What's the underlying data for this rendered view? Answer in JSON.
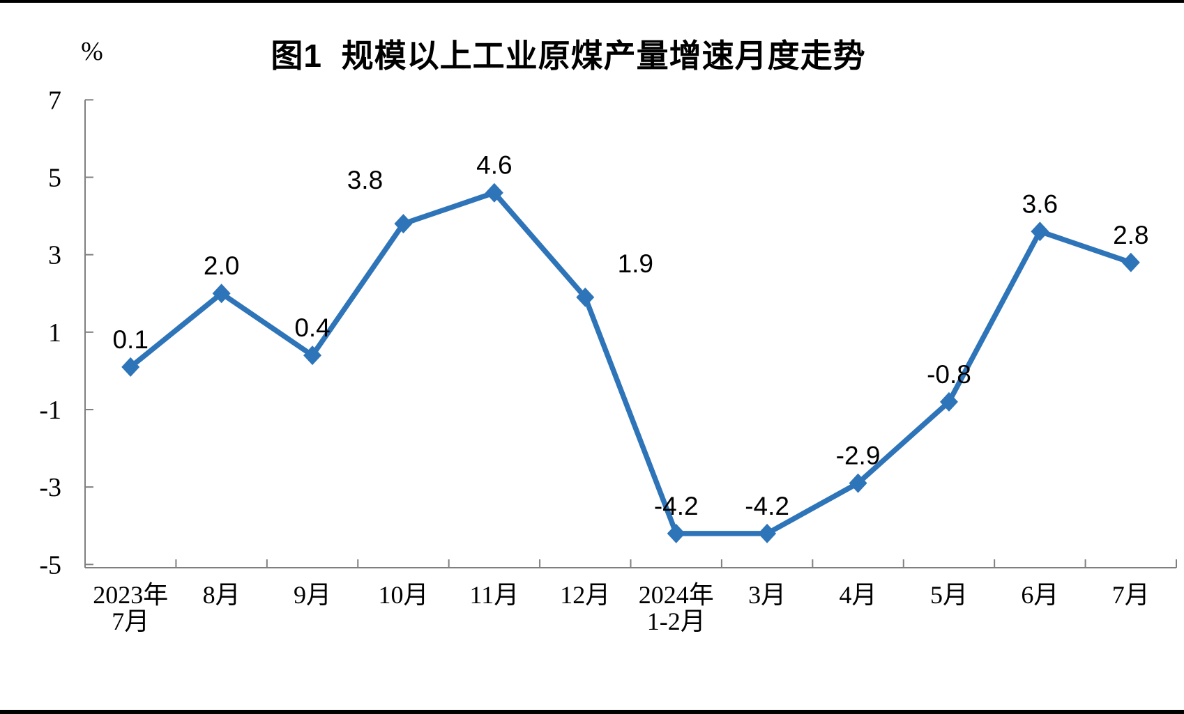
{
  "page": {
    "background_color": "#ffffff",
    "border_bar_color": "#000000"
  },
  "chart_data": {
    "type": "line",
    "title": "图1  规模以上工业原煤产量增速月度走势",
    "unit_label": "%",
    "categories": [
      "2023年\n7月",
      "8月",
      "9月",
      "10月",
      "11月",
      "12月",
      "2024年\n1-2月",
      "3月",
      "4月",
      "5月",
      "6月",
      "7月"
    ],
    "series": [
      {
        "name": "规模以上工业原煤产量增速",
        "values": [
          0.1,
          2.0,
          0.4,
          3.8,
          4.6,
          1.9,
          -4.2,
          -4.2,
          -2.9,
          -0.8,
          3.6,
          2.8
        ],
        "data_labels": [
          "0.1",
          "2.0",
          "0.4",
          "3.8",
          "4.6",
          "1.9",
          "-4.2",
          "-4.2",
          "-2.9",
          "-0.8",
          "3.6",
          "2.8"
        ]
      }
    ],
    "xlabel": "",
    "ylabel": "%",
    "y_ticks": [
      7,
      5,
      3,
      1,
      -1,
      -3,
      -5
    ],
    "ylim": [
      -5.1,
      7
    ],
    "grid": false,
    "legend": "none",
    "marker": "diamond",
    "line_color": "#2E74B8",
    "axis_color": "#7F7F7F",
    "text_color": "#000000"
  }
}
